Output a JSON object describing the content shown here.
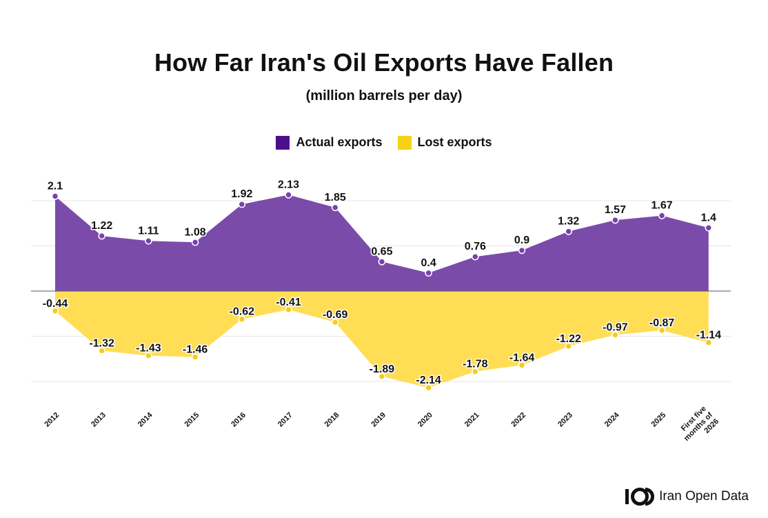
{
  "header": {
    "title": "How Far Iran's Oil Exports Have Fallen",
    "subtitle": "(million barrels per day)"
  },
  "legend": [
    {
      "label": "Actual exports",
      "color": "#4B0F8C"
    },
    {
      "label": "Lost exports",
      "color": "#F7D117"
    }
  ],
  "brand": {
    "name": "Iran Open Data",
    "icon": "iod-logo-icon"
  },
  "chart_data": {
    "type": "area",
    "categories": [
      "2012",
      "2013",
      "2014",
      "2015",
      "2016",
      "2017",
      "2018",
      "2019",
      "2020",
      "2021",
      "2022",
      "2023",
      "2024",
      "2025",
      "First five months of 2026"
    ],
    "category_lines": [
      [
        "2012"
      ],
      [
        "2013"
      ],
      [
        "2014"
      ],
      [
        "2015"
      ],
      [
        "2016"
      ],
      [
        "2017"
      ],
      [
        "2018"
      ],
      [
        "2019"
      ],
      [
        "2020"
      ],
      [
        "2021"
      ],
      [
        "2022"
      ],
      [
        "2023"
      ],
      [
        "2024"
      ],
      [
        "2025"
      ],
      [
        "First five",
        "months of",
        "2026"
      ]
    ],
    "series": [
      {
        "name": "Actual exports",
        "color": "#7B4BAA",
        "marker_color": "#7A3FB0",
        "values": [
          2.1,
          1.22,
          1.11,
          1.08,
          1.92,
          2.13,
          1.85,
          0.65,
          0.4,
          0.76,
          0.9,
          1.32,
          1.57,
          1.67,
          1.4
        ],
        "labels": [
          "2.1",
          "1.22",
          "1.11",
          "1.08",
          "1.92",
          "2.13",
          "1.85",
          "0.65",
          "0.4",
          "0.76",
          "0.9",
          "1.32",
          "1.57",
          "1.67",
          "1.4"
        ]
      },
      {
        "name": "Lost exports",
        "color": "#FFDD55",
        "marker_color": "#F2CD1C",
        "values": [
          -0.44,
          -1.32,
          -1.43,
          -1.46,
          -0.62,
          -0.41,
          -0.69,
          -1.89,
          -2.14,
          -1.78,
          -1.64,
          -1.22,
          -0.97,
          -0.87,
          -1.14
        ],
        "labels": [
          "-0.44",
          "-1.32",
          "-1.43",
          "-1.46",
          "-0.62",
          "-0.41",
          "-0.69",
          "-1.89",
          "-2.14",
          "-1.78",
          "-1.64",
          "-1.22",
          "-0.97",
          "-0.87",
          "-1.14"
        ]
      }
    ],
    "ylim": [
      -2.2,
      2.2
    ],
    "gridlines": [
      -2,
      -1,
      0,
      1,
      2
    ],
    "grid": true,
    "legend_position": "top-center"
  }
}
